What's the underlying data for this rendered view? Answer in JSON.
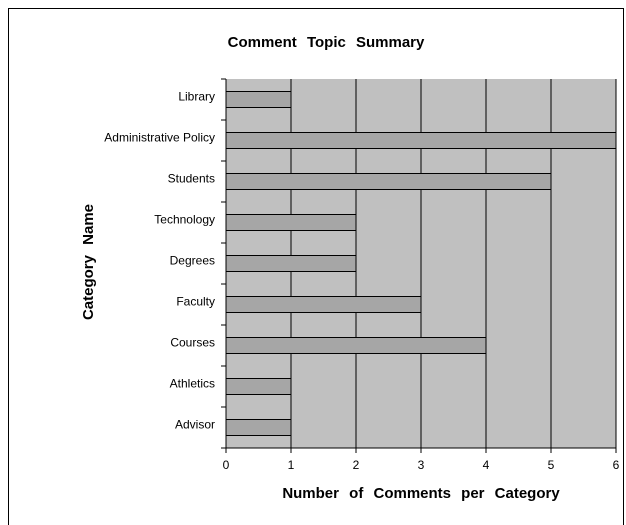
{
  "chart_data": {
    "type": "bar",
    "orientation": "horizontal",
    "title": "Comment Topic Summary",
    "x_label": "Number of Comments per Category",
    "y_label": "Category Name",
    "categories": [
      "Library",
      "Administrative Policy",
      "Students",
      "Technology",
      "Degrees",
      "Faculty",
      "Courses",
      "Athletics",
      "Advisor"
    ],
    "values": [
      1,
      6,
      5,
      2,
      2,
      3,
      4,
      1,
      1
    ],
    "color": "#a6a6a6",
    "plot_background": "#c0c0c0",
    "xlim": [
      0,
      6
    ],
    "xticks": [
      0,
      1,
      2,
      3,
      4,
      5,
      6
    ],
    "grid": true
  }
}
